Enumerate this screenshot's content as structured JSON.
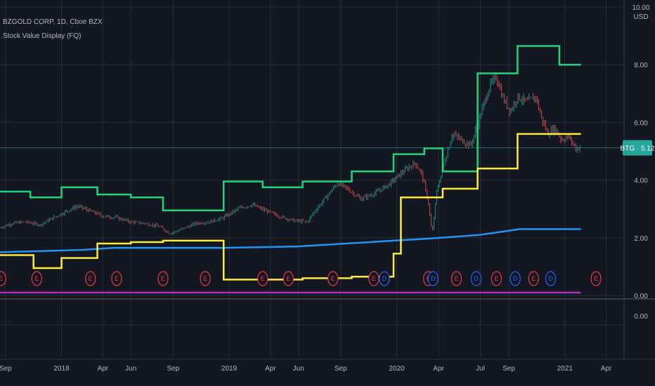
{
  "header": {
    "symbol_line": "BZGOLD CORP, 1D, Cboe BZX",
    "indicator_line": "Stock Value Display (FQ)"
  },
  "price_label": "BTG · 5.12",
  "chart_data": {
    "type": "line",
    "title": "",
    "currency": "USD",
    "ylim": [
      0,
      10
    ],
    "y_ticks": [
      "10.00",
      "8.00",
      "6.00",
      "4.00",
      "2.00",
      "0.00"
    ],
    "lower_pane_tick": "0.00",
    "grid": true,
    "last_price": 5.12,
    "x_range": [
      "2017-08-20",
      "2021-05-10"
    ],
    "x_ticks": [
      {
        "label": "Sep",
        "date": "2017-09-01"
      },
      {
        "label": "2018",
        "date": "2018-01-01"
      },
      {
        "label": "Apr",
        "date": "2018-04-01"
      },
      {
        "label": "Jun",
        "date": "2018-06-01"
      },
      {
        "label": "Sep",
        "date": "2018-09-01"
      },
      {
        "label": "2019",
        "date": "2019-01-01"
      },
      {
        "label": "Apr",
        "date": "2019-04-01"
      },
      {
        "label": "Jun",
        "date": "2019-06-01"
      },
      {
        "label": "Sep",
        "date": "2019-09-01"
      },
      {
        "label": "2020",
        "date": "2020-01-01"
      },
      {
        "label": "Apr",
        "date": "2020-04-01"
      },
      {
        "label": "Jul",
        "date": "2020-07-01"
      },
      {
        "label": "Sep",
        "date": "2020-09-01"
      },
      {
        "label": "2021",
        "date": "2021-01-01"
      },
      {
        "label": "Apr",
        "date": "2021-04-01"
      }
    ],
    "series": [
      {
        "color": "#22d37a",
        "step": true,
        "points": [
          [
            "2017-08-20",
            3.6
          ],
          [
            "2017-10-25",
            3.4
          ],
          [
            "2018-01-01",
            3.75
          ],
          [
            "2018-03-20",
            3.5
          ],
          [
            "2018-06-01",
            3.4
          ],
          [
            "2018-08-10",
            2.95
          ],
          [
            "2018-12-20",
            3.95
          ],
          [
            "2019-03-15",
            3.75
          ],
          [
            "2019-06-10",
            3.95
          ],
          [
            "2019-09-25",
            4.3
          ],
          [
            "2019-12-25",
            4.9
          ],
          [
            "2020-03-01",
            5.1
          ],
          [
            "2020-04-10",
            4.3
          ],
          [
            "2020-06-25",
            7.7
          ],
          [
            "2020-09-20",
            8.65
          ],
          [
            "2020-12-20",
            8.0
          ],
          [
            "2021-02-05",
            8.0
          ]
        ]
      },
      {
        "color": "#2196f3",
        "step": false,
        "points": [
          [
            "2017-08-20",
            1.5
          ],
          [
            "2018-02-15",
            1.58
          ],
          [
            "2018-04-25",
            1.65
          ],
          [
            "2018-12-20",
            1.65
          ],
          [
            "2019-06-01",
            1.7
          ],
          [
            "2019-12-25",
            1.9
          ],
          [
            "2020-03-10",
            1.97
          ],
          [
            "2020-06-30",
            2.1
          ],
          [
            "2020-09-25",
            2.3
          ],
          [
            "2021-02-05",
            2.3
          ]
        ]
      },
      {
        "color": "#ffeb3b",
        "step": true,
        "points": [
          [
            "2017-08-20",
            1.4
          ],
          [
            "2017-11-01",
            0.95
          ],
          [
            "2018-01-01",
            1.3
          ],
          [
            "2018-03-20",
            1.8
          ],
          [
            "2018-06-01",
            1.85
          ],
          [
            "2018-08-10",
            1.9
          ],
          [
            "2018-12-20",
            0.55
          ],
          [
            "2019-03-15",
            0.55
          ],
          [
            "2019-06-10",
            0.6
          ],
          [
            "2019-09-25",
            0.65
          ],
          [
            "2019-12-25",
            1.45
          ],
          [
            "2020-01-10",
            3.4
          ],
          [
            "2020-04-10",
            3.7
          ],
          [
            "2020-06-25",
            4.4
          ],
          [
            "2020-09-20",
            5.6
          ],
          [
            "2021-02-05",
            5.6
          ]
        ]
      },
      {
        "color": "#b22cb8",
        "step": false,
        "points": [
          [
            "2017-08-20",
            0.1
          ],
          [
            "2021-02-05",
            0.1
          ]
        ]
      }
    ],
    "price_path": [
      [
        "2017-08-20",
        2.35
      ],
      [
        "2017-09-15",
        2.5
      ],
      [
        "2017-10-15",
        2.55
      ],
      [
        "2017-11-15",
        2.45
      ],
      [
        "2017-12-15",
        2.7
      ],
      [
        "2018-01-15",
        2.95
      ],
      [
        "2018-02-05",
        3.1
      ],
      [
        "2018-03-01",
        2.95
      ],
      [
        "2018-04-01",
        2.75
      ],
      [
        "2018-05-01",
        2.7
      ],
      [
        "2018-06-01",
        2.55
      ],
      [
        "2018-07-01",
        2.5
      ],
      [
        "2018-08-01",
        2.4
      ],
      [
        "2018-08-25",
        2.15
      ],
      [
        "2018-09-20",
        2.3
      ],
      [
        "2018-10-20",
        2.5
      ],
      [
        "2018-11-20",
        2.55
      ],
      [
        "2018-12-20",
        2.7
      ],
      [
        "2019-01-20",
        3.0
      ],
      [
        "2019-02-20",
        3.15
      ],
      [
        "2019-03-20",
        2.95
      ],
      [
        "2019-04-20",
        2.75
      ],
      [
        "2019-05-20",
        2.6
      ],
      [
        "2019-06-20",
        2.55
      ],
      [
        "2019-07-10",
        3.0
      ],
      [
        "2019-08-05",
        3.5
      ],
      [
        "2019-08-25",
        3.9
      ],
      [
        "2019-09-15",
        3.7
      ],
      [
        "2019-10-15",
        3.35
      ],
      [
        "2019-11-15",
        3.55
      ],
      [
        "2019-12-15",
        3.85
      ],
      [
        "2020-01-15",
        4.3
      ],
      [
        "2020-02-10",
        4.6
      ],
      [
        "2020-02-25",
        4.2
      ],
      [
        "2020-03-10",
        3.2
      ],
      [
        "2020-03-18",
        2.1
      ],
      [
        "2020-03-28",
        3.6
      ],
      [
        "2020-04-15",
        4.7
      ],
      [
        "2020-05-01",
        5.6
      ],
      [
        "2020-05-20",
        5.4
      ],
      [
        "2020-06-10",
        5.2
      ],
      [
        "2020-06-30",
        6.2
      ],
      [
        "2020-07-20",
        7.2
      ],
      [
        "2020-08-05",
        7.6
      ],
      [
        "2020-08-20",
        6.8
      ],
      [
        "2020-09-05",
        6.4
      ],
      [
        "2020-09-20",
        6.9
      ],
      [
        "2020-10-10",
        6.7
      ],
      [
        "2020-10-30",
        6.9
      ],
      [
        "2020-11-10",
        6.2
      ],
      [
        "2020-11-25",
        5.6
      ],
      [
        "2020-12-10",
        5.8
      ],
      [
        "2020-12-25",
        5.4
      ],
      [
        "2021-01-10",
        5.5
      ],
      [
        "2021-01-25",
        5.1
      ],
      [
        "2021-02-05",
        5.12
      ]
    ],
    "events": [
      {
        "type": "E",
        "date": "2017-08-22"
      },
      {
        "type": "E",
        "date": "2017-11-08"
      },
      {
        "type": "E",
        "date": "2018-03-05"
      },
      {
        "type": "E",
        "date": "2018-05-01"
      },
      {
        "type": "E",
        "date": "2018-08-10"
      },
      {
        "type": "E",
        "date": "2018-11-10"
      },
      {
        "type": "E",
        "date": "2019-03-15"
      },
      {
        "type": "E",
        "date": "2019-05-10"
      },
      {
        "type": "E",
        "date": "2019-08-15"
      },
      {
        "type": "E",
        "date": "2019-11-12"
      },
      {
        "type": "D",
        "date": "2019-12-05"
      },
      {
        "type": "E",
        "date": "2020-03-10"
      },
      {
        "type": "D",
        "date": "2020-03-20"
      },
      {
        "type": "E",
        "date": "2020-05-10"
      },
      {
        "type": "D",
        "date": "2020-06-22"
      },
      {
        "type": "E",
        "date": "2020-08-05"
      },
      {
        "type": "D",
        "date": "2020-09-15"
      },
      {
        "type": "E",
        "date": "2020-10-25"
      },
      {
        "type": "D",
        "date": "2020-12-01"
      },
      {
        "type": "E",
        "date": "2021-03-10"
      }
    ],
    "colors": {
      "background": "#131722",
      "grid": "#2a2e39",
      "text": "#b2b5be",
      "label_bg": "#26a69a",
      "up": "#26a69a",
      "down": "#ef5350",
      "earnings": "#f23645",
      "dividend": "#2962ff"
    }
  }
}
